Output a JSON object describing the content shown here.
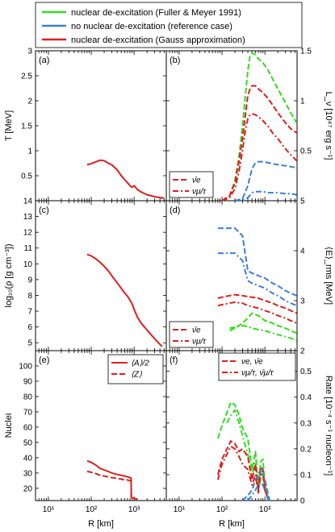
{
  "legend": {
    "items": [
      {
        "label": "nuclear de-excitation (Fuller & Meyer 1991)",
        "color": "#33dd22"
      },
      {
        "label": "no nuclear de-excitation (reference case)",
        "color": "#3a7fd5"
      },
      {
        "label": "nuclear de-excitation (Gauss approximation)",
        "color": "#dd1f1f"
      }
    ]
  },
  "xaxis": {
    "label": "R [km]",
    "range_log10": [
      0.7,
      3.75
    ],
    "ticks": [
      {
        "value": 10,
        "label": "10¹"
      },
      {
        "value": 100,
        "label": "10²"
      },
      {
        "value": 1000,
        "label": "10³"
      }
    ]
  },
  "chart_data": [
    {
      "id": "a",
      "tag": "(a)",
      "type": "line",
      "ylabel": "T [MeV]",
      "ylim": [
        0,
        3
      ],
      "ticks": [
        0.5,
        1,
        1.5,
        2,
        2.5,
        3
      ],
      "tick_labels": [
        "0.5",
        "1",
        "1.5",
        "2",
        "2.5",
        "3"
      ],
      "series": [
        {
          "color": "#dd1f1f",
          "dash": "solid",
          "x": [
            80,
            100,
            130,
            160,
            200,
            250,
            300,
            400,
            500,
            600,
            700,
            800,
            900,
            1000,
            1200,
            1500,
            2000,
            3000,
            5000
          ],
          "y": [
            0.72,
            0.74,
            0.78,
            0.81,
            0.8,
            0.75,
            0.72,
            0.62,
            0.5,
            0.42,
            0.36,
            0.3,
            0.27,
            0.3,
            0.22,
            0.17,
            0.12,
            0.08,
            0.05
          ]
        }
      ]
    },
    {
      "id": "b",
      "tag": "(b)",
      "type": "line",
      "ylabel": "L_ν [10⁴⁷ erg s⁻¹]",
      "ylim": [
        0,
        1.5
      ],
      "ticks": [
        0.5,
        1,
        1.5
      ],
      "tick_labels": [
        "0.5",
        "1",
        "1.5"
      ],
      "mini_legend": [
        "ν̄e",
        "νμ/τ"
      ],
      "series": [
        {
          "color": "#33dd22",
          "dash": "dash",
          "x": [
            100,
            150,
            200,
            250,
            300,
            350,
            400,
            450,
            500,
            600,
            700,
            900,
            1200,
            1500,
            2000,
            3000,
            4000,
            5500
          ],
          "y": [
            0.0,
            0.05,
            0.2,
            0.45,
            0.75,
            1.05,
            1.3,
            1.45,
            1.48,
            1.46,
            1.42,
            1.38,
            1.3,
            1.22,
            1.12,
            0.98,
            0.88,
            0.78
          ]
        },
        {
          "color": "#dd1f1f",
          "dash": "dash",
          "x": [
            100,
            150,
            200,
            250,
            300,
            350,
            400,
            450,
            500,
            600,
            700,
            900,
            1200,
            1500,
            2000,
            3000,
            4000,
            5500
          ],
          "y": [
            0.0,
            0.05,
            0.18,
            0.4,
            0.62,
            0.85,
            1.05,
            1.12,
            1.15,
            1.15,
            1.12,
            1.08,
            1.02,
            0.96,
            0.88,
            0.78,
            0.72,
            0.68
          ]
        },
        {
          "color": "#dd1f1f",
          "dash": "dashdot",
          "x": [
            100,
            150,
            200,
            250,
            300,
            350,
            400,
            450,
            500,
            600,
            700,
            900,
            1200,
            1500,
            2000,
            3000,
            4000,
            5500
          ],
          "y": [
            0.0,
            0.03,
            0.12,
            0.3,
            0.5,
            0.7,
            0.82,
            0.86,
            0.87,
            0.86,
            0.84,
            0.8,
            0.74,
            0.68,
            0.62,
            0.52,
            0.46,
            0.4
          ]
        },
        {
          "color": "#3a7fd5",
          "dash": "dash",
          "x": [
            200,
            300,
            400,
            500,
            600,
            700,
            900,
            1200,
            1500,
            2000,
            3000,
            4000,
            5500
          ],
          "y": [
            0.0,
            0.02,
            0.15,
            0.32,
            0.38,
            0.39,
            0.39,
            0.38,
            0.37,
            0.36,
            0.35,
            0.34,
            0.33
          ]
        },
        {
          "color": "#3a7fd5",
          "dash": "dashdot",
          "x": [
            200,
            300,
            400,
            500,
            600,
            700,
            900,
            1200,
            1500,
            2000,
            3000,
            4000,
            5500
          ],
          "y": [
            0.0,
            0.0,
            0.03,
            0.08,
            0.09,
            0.09,
            0.09,
            0.08,
            0.08,
            0.08,
            0.07,
            0.07,
            0.06
          ]
        }
      ]
    },
    {
      "id": "c",
      "tag": "(c)",
      "type": "line",
      "ylabel": "log₁₀(ρ [g cm⁻³])",
      "ylim": [
        4.5,
        14
      ],
      "ticks": [
        5,
        6,
        7,
        8,
        9,
        10,
        11,
        12,
        13,
        14
      ],
      "tick_labels": [
        "5",
        "6",
        "7",
        "8",
        "9",
        "10",
        "11",
        "12",
        "13",
        "14"
      ],
      "series": [
        {
          "color": "#dd1f1f",
          "dash": "solid",
          "x": [
            80,
            100,
            130,
            160,
            200,
            250,
            300,
            400,
            500,
            600,
            700,
            800,
            900,
            1000,
            1200,
            1500,
            2000,
            3000,
            4500
          ],
          "y": [
            10.6,
            10.5,
            10.3,
            10.1,
            9.85,
            9.55,
            9.25,
            8.8,
            8.45,
            8.15,
            7.95,
            7.7,
            7.45,
            7.1,
            6.6,
            6.2,
            5.8,
            5.25,
            4.75
          ]
        }
      ]
    },
    {
      "id": "d",
      "tag": "(d)",
      "type": "line",
      "ylabel": "⟨E⟩_rms [MeV]",
      "ylim": [
        2,
        5
      ],
      "ticks": [
        2,
        3,
        4,
        5
      ],
      "tick_labels": [
        "2",
        "3",
        "4",
        "5"
      ],
      "mini_legend": [
        "ν̄e",
        "νμ/τ"
      ],
      "series": [
        {
          "color": "#3a7fd5",
          "dash": "dash",
          "x": [
            80,
            100,
            150,
            200,
            300,
            400,
            500,
            700,
            1000,
            1500,
            2000,
            3000,
            4000,
            5500
          ],
          "y": [
            4.45,
            4.45,
            4.45,
            4.45,
            4.3,
            3.6,
            3.55,
            3.5,
            3.45,
            3.35,
            3.3,
            3.2,
            3.15,
            3.1
          ]
        },
        {
          "color": "#3a7fd5",
          "dash": "dashdot",
          "x": [
            80,
            100,
            150,
            200,
            300,
            400,
            500,
            700,
            1000,
            1500,
            2000,
            3000,
            4000,
            5500
          ],
          "y": [
            3.95,
            3.95,
            3.95,
            3.95,
            3.8,
            3.4,
            3.35,
            3.3,
            3.25,
            3.15,
            3.1,
            3.0,
            2.95,
            2.9
          ]
        },
        {
          "color": "#dd1f1f",
          "dash": "dash",
          "x": [
            80,
            100,
            150,
            200,
            300,
            400,
            500,
            700,
            1000,
            1500,
            2000,
            3000,
            4000,
            5500
          ],
          "y": [
            3.05,
            3.07,
            3.1,
            3.12,
            3.1,
            3.08,
            3.07,
            3.05,
            3.0,
            2.95,
            2.9,
            2.85,
            2.8,
            2.75
          ]
        },
        {
          "color": "#dd1f1f",
          "dash": "dashdot",
          "x": [
            80,
            100,
            150,
            200,
            300,
            400,
            500,
            700,
            1000,
            1500,
            2000,
            3000,
            4000,
            5500
          ],
          "y": [
            2.9,
            2.92,
            2.95,
            2.97,
            2.95,
            2.9,
            2.88,
            2.85,
            2.8,
            2.75,
            2.7,
            2.65,
            2.6,
            2.55
          ]
        },
        {
          "color": "#33dd22",
          "dash": "dash",
          "x": [
            150,
            200,
            300,
            400,
            500,
            700,
            1000,
            1500,
            2000,
            3000,
            4000,
            5500
          ],
          "y": [
            2.4,
            2.45,
            2.55,
            2.65,
            2.75,
            2.7,
            2.6,
            2.55,
            2.5,
            2.45,
            2.4,
            2.35
          ]
        },
        {
          "color": "#33dd22",
          "dash": "dashdot",
          "x": [
            150,
            200,
            300,
            400,
            500,
            700,
            1000,
            1500,
            2000,
            3000,
            4000,
            5500
          ],
          "y": [
            2.45,
            2.47,
            2.5,
            2.48,
            2.45,
            2.42,
            2.4,
            2.35,
            2.32,
            2.28,
            2.25,
            2.2
          ]
        }
      ]
    },
    {
      "id": "e",
      "tag": "(e)",
      "type": "line",
      "ylabel": "Nuclei",
      "ylim": [
        12,
        110
      ],
      "ticks": [
        20,
        30,
        40,
        50,
        60,
        70,
        80,
        90,
        100
      ],
      "tick_labels": [
        "20",
        "30",
        "40",
        "50",
        "60",
        "70",
        "80",
        "90",
        "100"
      ],
      "mini_legend": [
        "⟨A⟩/2",
        "⟨Z⟩"
      ],
      "series": [
        {
          "color": "#dd1f1f",
          "dash": "solid",
          "x": [
            80,
            100,
            130,
            160,
            200,
            250,
            300,
            400,
            500,
            600,
            700,
            800,
            850,
            860,
            1000,
            1100,
            1200
          ],
          "y": [
            38,
            37,
            35,
            33,
            32,
            31,
            30,
            29,
            28.5,
            28,
            27.5,
            27,
            26.5,
            14,
            13.5,
            13,
            13
          ]
        },
        {
          "color": "#dd1f1f",
          "dash": "dash",
          "x": [
            80,
            100,
            130,
            160,
            200,
            250,
            300,
            400,
            500,
            600,
            700,
            800,
            850,
            860,
            1000,
            1100,
            1200
          ],
          "y": [
            31,
            30.5,
            29.5,
            28.5,
            28,
            27.5,
            27,
            26.5,
            26,
            25.5,
            25.5,
            25,
            24.5,
            14,
            13.5,
            13,
            13
          ]
        }
      ]
    },
    {
      "id": "f",
      "tag": "(f)",
      "type": "line",
      "ylabel": "Rate [10⁻⁴ s⁻¹ nucleon⁻¹]",
      "ylim": [
        0,
        0.58
      ],
      "ticks": [
        0,
        0.1,
        0.2,
        0.3,
        0.4,
        0.5
      ],
      "tick_labels": [
        "0",
        "0.1",
        "0.2",
        "0.3",
        "0.4",
        "0.5"
      ],
      "mini_legend": [
        "νe, ν̄e",
        "νμ/τ, ν̄μ/τ"
      ],
      "series": [
        {
          "color": "#33dd22",
          "dash": "dash",
          "x": [
            80,
            100,
            130,
            160,
            200,
            250,
            300,
            400,
            500,
            600,
            700,
            800,
            900,
            1000,
            1100,
            1200
          ],
          "y": [
            0.24,
            0.29,
            0.34,
            0.38,
            0.37,
            0.33,
            0.28,
            0.24,
            0.12,
            0.19,
            0.06,
            0.15,
            0.16,
            0.06,
            0.03,
            0.01
          ]
        },
        {
          "color": "#33dd22",
          "dash": "dashdot",
          "x": [
            130,
            160,
            200,
            250,
            300,
            400,
            500,
            600,
            700,
            800,
            900,
            1000,
            1100,
            1200
          ],
          "y": [
            0.3,
            0.33,
            0.35,
            0.3,
            0.25,
            0.18,
            0.1,
            0.15,
            0.05,
            0.12,
            0.1,
            0.04,
            0.02,
            0.01
          ]
        },
        {
          "color": "#dd1f1f",
          "dash": "dash",
          "x": [
            80,
            100,
            130,
            160,
            200,
            250,
            300,
            400,
            500,
            600,
            700,
            800,
            900,
            1000,
            1100,
            1200
          ],
          "y": [
            0.1,
            0.16,
            0.2,
            0.23,
            0.22,
            0.19,
            0.2,
            0.17,
            0.08,
            0.14,
            0.04,
            0.13,
            0.12,
            0.05,
            0.02,
            0.01
          ]
        },
        {
          "color": "#dd1f1f",
          "dash": "dashdot",
          "x": [
            80,
            100,
            130,
            160,
            200,
            250,
            300,
            400,
            500,
            600,
            700,
            800,
            900,
            1000,
            1100,
            1200
          ],
          "y": [
            0.08,
            0.14,
            0.18,
            0.21,
            0.2,
            0.17,
            0.14,
            0.12,
            0.06,
            0.1,
            0.03,
            0.1,
            0.1,
            0.04,
            0.02,
            0.0
          ]
        },
        {
          "color": "#3a7fd5",
          "dash": "dash",
          "x": [
            300,
            400,
            500,
            600,
            700,
            800,
            900,
            1000,
            1100,
            1200,
            1300
          ],
          "y": [
            0.0,
            0.02,
            0.04,
            0.08,
            0.1,
            0.12,
            0.1,
            0.08,
            0.05,
            0.02,
            0.0
          ]
        },
        {
          "color": "#3a7fd5",
          "dash": "dashdot",
          "x": [
            400,
            500,
            600,
            700,
            800,
            900,
            1000,
            1100,
            1200
          ],
          "y": [
            0.0,
            0.02,
            0.04,
            0.06,
            0.07,
            0.06,
            0.04,
            0.02,
            0.0
          ]
        }
      ]
    }
  ]
}
